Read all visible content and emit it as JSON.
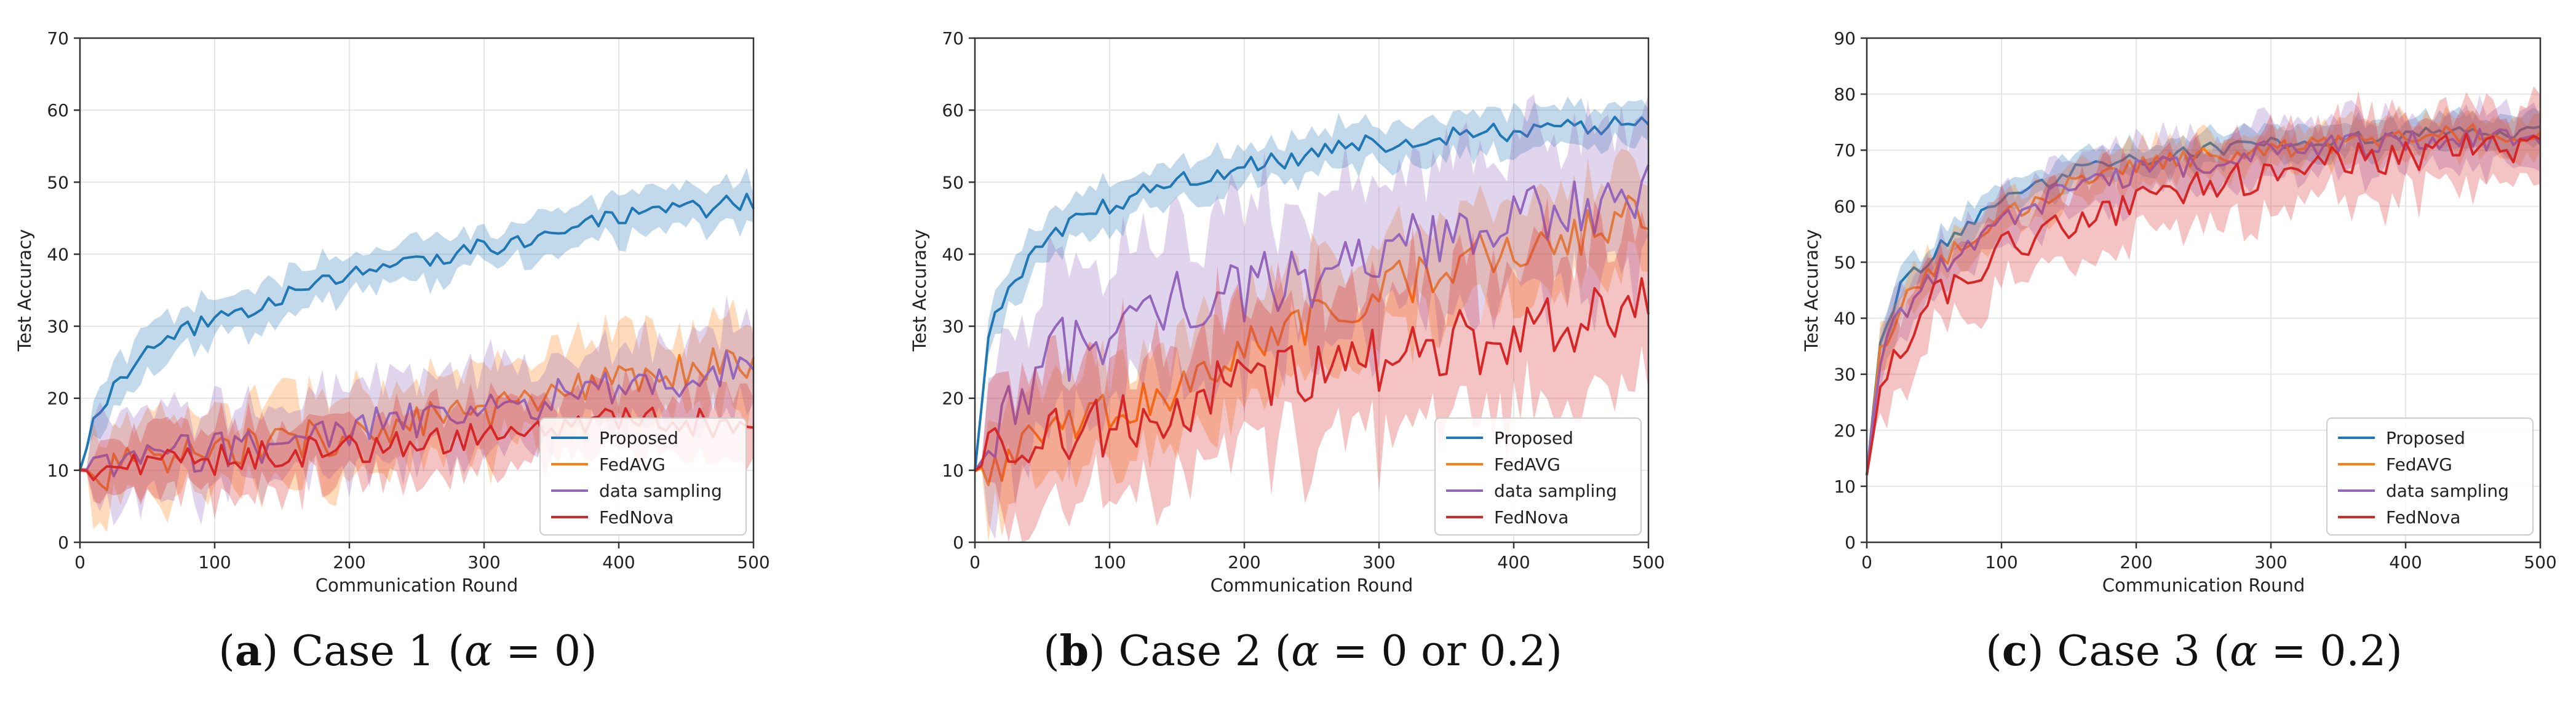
{
  "figure": {
    "panels": [
      {
        "letter": "a",
        "caption_rest": " Case 1 (",
        "alpha": "α",
        "caption_end": " = 0)"
      },
      {
        "letter": "b",
        "caption_rest": " Case 2 (",
        "alpha": "α",
        "caption_end": " = 0 or 0.2)"
      },
      {
        "letter": "c",
        "caption_rest": " Case 3 (",
        "alpha": "α",
        "caption_end": " = 0.2)"
      }
    ]
  },
  "colors": {
    "Proposed": "#1f77b4",
    "FedAVG": "#ff7f0e",
    "data sampling": "#9467bd",
    "FedNova": "#d62728"
  },
  "chart_data": [
    {
      "type": "line",
      "title": "",
      "xlabel": "Communication Round",
      "ylabel": "Test Accuracy",
      "xlim": [
        0,
        500
      ],
      "ylim": [
        0,
        70
      ],
      "xticks": [
        0,
        100,
        200,
        300,
        400,
        500
      ],
      "yticks": [
        0,
        10,
        20,
        30,
        40,
        50,
        60,
        70
      ],
      "legend": "bottom-right",
      "legend_entries": [
        "Proposed",
        "FedAVG",
        "data sampling",
        "FedNova"
      ],
      "series": [
        {
          "name": "Proposed",
          "x": [
            0,
            10,
            25,
            50,
            75,
            100,
            150,
            200,
            250,
            300,
            350,
            400,
            450,
            500
          ],
          "values": [
            10,
            16,
            22,
            26,
            29,
            31,
            34,
            37,
            39,
            41,
            43,
            45,
            46,
            47.5
          ],
          "band": 2.5
        },
        {
          "name": "FedAVG",
          "x": [
            0,
            25,
            50,
            100,
            150,
            200,
            250,
            300,
            350,
            400,
            450,
            500
          ],
          "values": [
            10,
            10,
            11,
            12.5,
            14,
            15,
            16.5,
            18,
            20,
            22,
            24,
            24.5
          ],
          "band": 5
        },
        {
          "name": "data sampling",
          "x": [
            0,
            25,
            50,
            100,
            150,
            200,
            250,
            300,
            350,
            400,
            450,
            500
          ],
          "values": [
            10,
            10.5,
            11.5,
            13,
            14,
            15.5,
            17,
            18,
            20,
            21,
            23,
            25
          ],
          "band": 5
        },
        {
          "name": "FedNova",
          "x": [
            0,
            25,
            50,
            100,
            150,
            200,
            250,
            300,
            350,
            400,
            450,
            500
          ],
          "values": [
            10,
            10,
            10.5,
            11.5,
            12.5,
            13,
            14,
            15,
            15.5,
            16.5,
            17,
            14
          ],
          "band": 4
        }
      ]
    },
    {
      "type": "line",
      "title": "",
      "xlabel": "Communication Round",
      "ylabel": "Test Accuracy",
      "xlim": [
        0,
        500
      ],
      "ylim": [
        0,
        70
      ],
      "xticks": [
        0,
        100,
        200,
        300,
        400,
        500
      ],
      "yticks": [
        0,
        10,
        20,
        30,
        40,
        50,
        60,
        70
      ],
      "legend": "bottom-right",
      "legend_entries": [
        "Proposed",
        "FedAVG",
        "data sampling",
        "FedNova"
      ],
      "series": [
        {
          "name": "Proposed",
          "x": [
            0,
            10,
            25,
            50,
            75,
            100,
            150,
            200,
            250,
            300,
            350,
            400,
            450,
            500
          ],
          "values": [
            10,
            28,
            36,
            41,
            45,
            47,
            50,
            52,
            54,
            55.5,
            56.5,
            57,
            57.5,
            58
          ],
          "band": 2.5
        },
        {
          "name": "FedAVG",
          "x": [
            0,
            25,
            50,
            100,
            150,
            200,
            250,
            300,
            350,
            400,
            450,
            500
          ],
          "values": [
            10,
            12,
            14,
            18,
            22,
            27,
            31,
            35,
            38,
            41,
            43,
            46
          ],
          "band": 6
        },
        {
          "name": "data sampling",
          "x": [
            0,
            25,
            50,
            100,
            150,
            200,
            250,
            300,
            350,
            400,
            450,
            500
          ],
          "values": [
            10,
            17,
            25,
            30,
            33,
            35,
            37,
            40,
            42,
            44,
            46,
            50
          ],
          "band": 9
        },
        {
          "name": "FedNova",
          "x": [
            0,
            25,
            50,
            100,
            150,
            200,
            250,
            300,
            350,
            400,
            450,
            500
          ],
          "values": [
            10,
            13,
            14,
            16,
            19,
            21,
            23,
            25,
            27,
            29,
            31,
            33
          ],
          "band": 9
        }
      ]
    },
    {
      "type": "line",
      "title": "",
      "xlabel": "Communication Round",
      "ylabel": "Test Accuracy",
      "xlim": [
        0,
        500
      ],
      "ylim": [
        0,
        90
      ],
      "xticks": [
        0,
        100,
        200,
        300,
        400,
        500
      ],
      "yticks": [
        0,
        10,
        20,
        30,
        40,
        50,
        60,
        70,
        80,
        90
      ],
      "legend": "bottom-right",
      "legend_entries": [
        "Proposed",
        "FedAVG",
        "data sampling",
        "FedNova"
      ],
      "series": [
        {
          "name": "Proposed",
          "x": [
            0,
            10,
            25,
            50,
            75,
            100,
            150,
            200,
            250,
            300,
            350,
            400,
            450,
            500
          ],
          "values": [
            12,
            36,
            45,
            52,
            57,
            61,
            66,
            68.5,
            70,
            71,
            72,
            72.5,
            73,
            73
          ],
          "band": 2.5
        },
        {
          "name": "FedAVG",
          "x": [
            0,
            10,
            25,
            50,
            75,
            100,
            150,
            200,
            250,
            300,
            350,
            400,
            450,
            500
          ],
          "values": [
            12,
            34,
            42,
            49,
            54,
            58,
            64,
            67,
            69,
            70,
            71,
            72,
            73,
            73
          ],
          "band": 3
        },
        {
          "name": "data sampling",
          "x": [
            0,
            10,
            25,
            50,
            75,
            100,
            150,
            200,
            250,
            300,
            350,
            400,
            450,
            500
          ],
          "values": [
            12,
            33,
            41,
            48,
            53,
            57,
            63,
            66,
            68,
            69.5,
            70.5,
            71.5,
            72,
            72.5
          ],
          "band": 4
        },
        {
          "name": "FedNova",
          "x": [
            0,
            10,
            25,
            50,
            75,
            100,
            150,
            200,
            250,
            300,
            350,
            400,
            450,
            500
          ],
          "values": [
            12,
            27,
            36,
            43,
            48,
            52,
            57,
            61,
            64,
            66,
            68,
            69,
            70,
            70
          ],
          "band": 6
        }
      ]
    }
  ]
}
